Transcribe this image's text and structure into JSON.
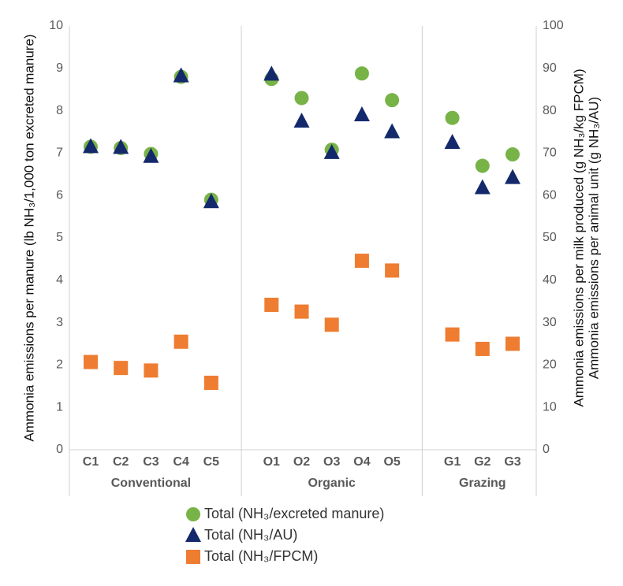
{
  "chart_data": {
    "type": "scatter",
    "categories": [
      "C1",
      "C2",
      "C3",
      "C4",
      "C5",
      null,
      "O1",
      "O2",
      "O3",
      "O4",
      "O5",
      null,
      "G1",
      "G2",
      "G3"
    ],
    "groups": [
      "Conventional",
      "Organic",
      "Grazing"
    ],
    "ylabel": "Ammonia emissions per manure (lb NH₃/1,000 ton excreted manure)",
    "y2label": [
      "Ammonia emissions per milk produced (g NH₃/kg FPCM)",
      "Ammonia emissions per animal unit (g NH₃/AU)"
    ],
    "ylim": [
      0,
      10
    ],
    "yticks": [
      0,
      1,
      2,
      3,
      4,
      5,
      6,
      7,
      8,
      9,
      10
    ],
    "y2lim": [
      0,
      100
    ],
    "y2ticks": [
      0,
      10,
      20,
      30,
      40,
      50,
      60,
      70,
      80,
      90,
      100
    ],
    "series": [
      {
        "name": "Total (NH₃/excreted manure)",
        "color": "#77b347",
        "marker": "circle",
        "values": [
          7.15,
          7.12,
          6.98,
          8.8,
          5.9,
          null,
          8.75,
          8.3,
          7.08,
          8.88,
          8.25,
          null,
          7.83,
          6.7,
          6.97
        ]
      },
      {
        "name": "Total (NH₃/AU)",
        "color": "#14296b",
        "marker": "triangle",
        "axis": "y2",
        "values": [
          71.5,
          71.3,
          69.2,
          88.2,
          58.5,
          null,
          88.6,
          77.5,
          70.1,
          79,
          75,
          null,
          72.5,
          61.8,
          64.2
        ]
      },
      {
        "name": "Total (NH₃/FPCM)",
        "color": "#ee7d31",
        "marker": "square",
        "axis": "y2",
        "values": [
          20.7,
          19.3,
          18.7,
          25.5,
          15.8,
          null,
          34.2,
          32.6,
          29.5,
          44.6,
          42.3,
          null,
          27.2,
          23.8,
          25
        ]
      }
    ]
  }
}
